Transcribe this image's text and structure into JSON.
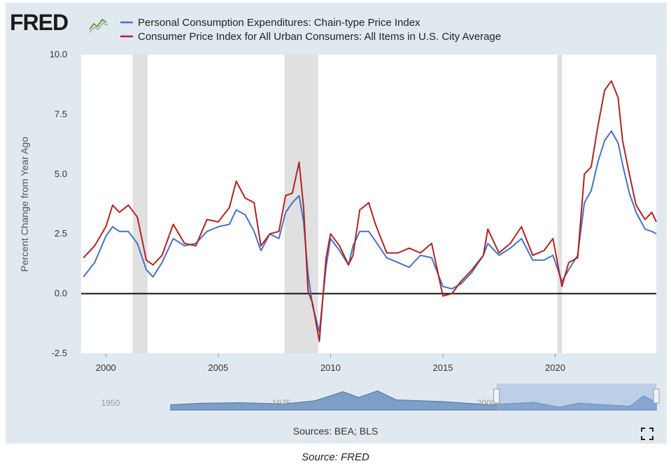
{
  "header": {
    "logo_text": "FRED",
    "logo_icon": "line-chart-icon"
  },
  "chart_data": {
    "type": "line",
    "ylabel": "Percent Change from Year Ago",
    "xlim": [
      1998.9,
      2024.5
    ],
    "ylim": [
      -2.5,
      10.0
    ],
    "y_ticks": [
      -2.5,
      0.0,
      2.5,
      5.0,
      7.5,
      10.0
    ],
    "y_tick_labels": [
      "-2.5",
      "0.0",
      "2.5",
      "5.0",
      "7.5",
      "10.0"
    ],
    "x_ticks": [
      2000,
      2005,
      2010,
      2015,
      2020
    ],
    "x_tick_labels": [
      "2000",
      "2005",
      "2010",
      "2015",
      "2020"
    ],
    "zero_line": 0,
    "legend_placement": "top",
    "recessions": [
      [
        2001.2,
        2001.85
      ],
      [
        2007.95,
        2009.45
      ],
      [
        2020.1,
        2020.3
      ]
    ],
    "recession_color": "#e0e0e0",
    "series": [
      {
        "name": "Personal Consumption Expenditures: Chain-type Price Index",
        "color": "#4472c4",
        "x": [
          1999.0,
          1999.5,
          2000.0,
          2000.3,
          2000.6,
          2001.0,
          2001.4,
          2001.8,
          2002.1,
          2002.5,
          2003.0,
          2003.5,
          2004.0,
          2004.5,
          2005.0,
          2005.5,
          2005.8,
          2006.2,
          2006.6,
          2006.9,
          2007.3,
          2007.7,
          2008.0,
          2008.3,
          2008.6,
          2008.8,
          2009.0,
          2009.2,
          2009.5,
          2009.8,
          2010.0,
          2010.4,
          2010.8,
          2011.0,
          2011.3,
          2011.7,
          2012.0,
          2012.5,
          2013.0,
          2013.5,
          2014.0,
          2014.5,
          2015.0,
          2015.4,
          2015.8,
          2016.3,
          2016.8,
          2017.0,
          2017.5,
          2018.0,
          2018.5,
          2019.0,
          2019.5,
          2019.9,
          2020.3,
          2020.6,
          2021.0,
          2021.3,
          2021.6,
          2021.9,
          2022.2,
          2022.5,
          2022.8,
          2023.0,
          2023.3,
          2023.6,
          2024.0,
          2024.3,
          2024.5
        ],
        "values": [
          0.7,
          1.3,
          2.4,
          2.8,
          2.6,
          2.6,
          2.1,
          1.0,
          0.7,
          1.3,
          2.3,
          2.0,
          2.1,
          2.6,
          2.8,
          2.9,
          3.5,
          3.3,
          2.6,
          1.8,
          2.5,
          2.3,
          3.4,
          3.8,
          4.1,
          3.0,
          0.8,
          -0.5,
          -1.6,
          1.1,
          2.3,
          1.8,
          1.2,
          2.0,
          2.6,
          2.6,
          2.2,
          1.5,
          1.3,
          1.1,
          1.6,
          1.5,
          0.3,
          0.2,
          0.4,
          0.9,
          1.6,
          2.1,
          1.6,
          1.9,
          2.3,
          1.4,
          1.4,
          1.6,
          0.5,
          1.0,
          1.6,
          3.8,
          4.3,
          5.5,
          6.4,
          6.8,
          6.3,
          5.4,
          4.2,
          3.4,
          2.7,
          2.6,
          2.5
        ]
      },
      {
        "name": "Consumer Price Index for All Urban Consumers: All Items in U.S. City Average",
        "color": "#b22222",
        "x": [
          1999.0,
          1999.5,
          2000.0,
          2000.3,
          2000.6,
          2001.0,
          2001.4,
          2001.8,
          2002.1,
          2002.5,
          2003.0,
          2003.5,
          2004.0,
          2004.5,
          2005.0,
          2005.5,
          2005.8,
          2006.2,
          2006.6,
          2006.9,
          2007.3,
          2007.7,
          2008.0,
          2008.3,
          2008.6,
          2008.8,
          2009.0,
          2009.2,
          2009.5,
          2009.8,
          2010.0,
          2010.4,
          2010.8,
          2011.0,
          2011.3,
          2011.7,
          2012.0,
          2012.5,
          2013.0,
          2013.5,
          2014.0,
          2014.5,
          2015.0,
          2015.4,
          2015.8,
          2016.3,
          2016.8,
          2017.0,
          2017.5,
          2018.0,
          2018.5,
          2019.0,
          2019.5,
          2019.9,
          2020.3,
          2020.6,
          2021.0,
          2021.3,
          2021.6,
          2021.9,
          2022.2,
          2022.5,
          2022.8,
          2023.0,
          2023.3,
          2023.6,
          2024.0,
          2024.3,
          2024.5
        ],
        "values": [
          1.5,
          2.0,
          2.8,
          3.7,
          3.4,
          3.7,
          3.2,
          1.4,
          1.2,
          1.6,
          2.9,
          2.1,
          2.0,
          3.1,
          3.0,
          3.6,
          4.7,
          4.0,
          3.8,
          2.0,
          2.5,
          2.6,
          4.1,
          4.2,
          5.5,
          3.6,
          0.1,
          -0.4,
          -2.0,
          1.5,
          2.5,
          2.0,
          1.2,
          1.6,
          3.5,
          3.8,
          2.9,
          1.7,
          1.7,
          1.9,
          1.7,
          2.1,
          -0.1,
          0.0,
          0.5,
          1.0,
          1.6,
          2.7,
          1.7,
          2.1,
          2.8,
          1.6,
          1.8,
          2.3,
          0.3,
          1.3,
          1.5,
          5.0,
          5.3,
          7.0,
          8.5,
          8.9,
          8.2,
          6.4,
          5.0,
          3.7,
          3.1,
          3.4,
          3.0
        ]
      }
    ],
    "navigator": {
      "labels": [
        "1950",
        "1975",
        "2000"
      ],
      "selected_range": [
        1999,
        2024.5
      ],
      "handle_color": "#aaaaaa"
    }
  },
  "footer": {
    "sources": "Sources: BEA; BLS",
    "caption": "Source: FRED",
    "fullscreen_icon": "fullscreen-icon"
  }
}
